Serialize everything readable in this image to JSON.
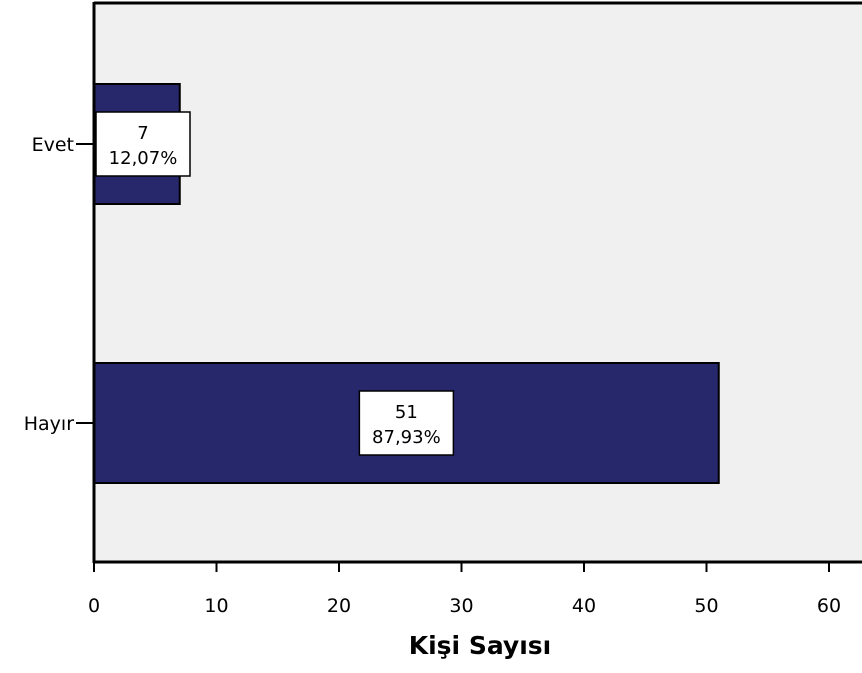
{
  "chart_data": {
    "type": "bar",
    "orientation": "horizontal",
    "categories": [
      "Evet",
      "Hayır"
    ],
    "values": [
      7,
      51
    ],
    "percent_labels": [
      "12,07%",
      "87,93%"
    ],
    "xlabel": "Kişi Sayısı",
    "ylabel": "",
    "xlim": [
      0,
      63
    ],
    "xticks": [
      0,
      10,
      20,
      30,
      40,
      50,
      60
    ],
    "grid": false,
    "legend": "none",
    "colors": {
      "bar": "#27276b",
      "plot_background": "#f0f0f0",
      "label_box": "#ffffff",
      "axis": "#000000"
    }
  }
}
